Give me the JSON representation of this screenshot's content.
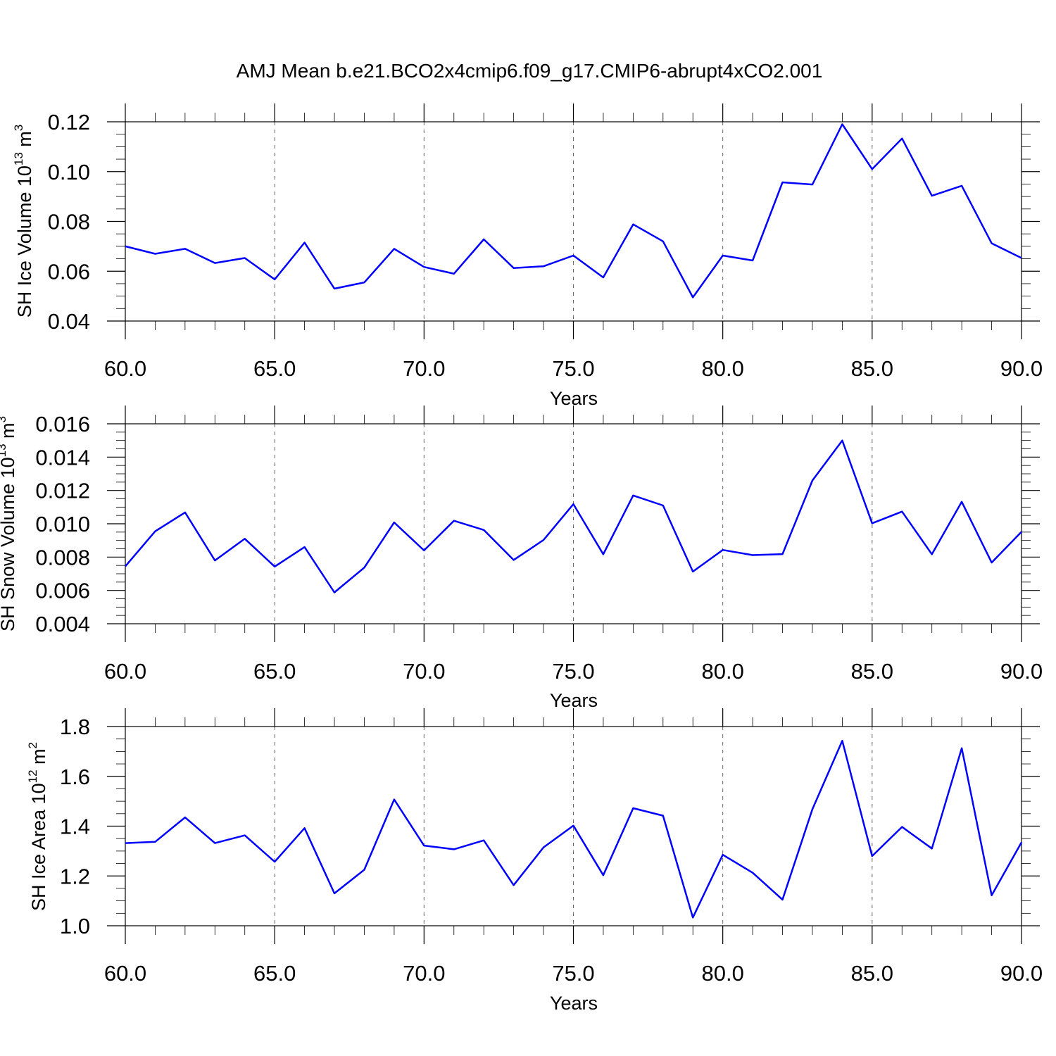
{
  "title": "AMJ Mean b.e21.BCO2x4cmip6.f09_g17.CMIP6-abrupt4xCO2.001",
  "colors": {
    "series": "#0000ff",
    "grid": "#666666",
    "axis": "#000000"
  },
  "chart_data": [
    {
      "type": "line",
      "ylabel": {
        "main": "SH Ice Volume 10",
        "sup1": "13",
        "mid": " m",
        "sup2": "3"
      },
      "xlabel": "Years",
      "xlim": [
        60,
        90
      ],
      "ylim": [
        0.04,
        0.12
      ],
      "xticks": [
        60,
        65,
        70,
        75,
        80,
        85,
        90
      ],
      "xtick_labels": [
        "60.0",
        "65.0",
        "70.0",
        "75.0",
        "80.0",
        "85.0",
        "90.0"
      ],
      "yticks": [
        0.04,
        0.06,
        0.08,
        0.1,
        0.12
      ],
      "ytick_labels": [
        "0.04",
        "0.06",
        "0.08",
        "0.10",
        "0.12"
      ],
      "y_minor_step": 0.005,
      "grid": "vertical dashed",
      "x": [
        60,
        61,
        62,
        63,
        64,
        65,
        66,
        67,
        68,
        69,
        70,
        71,
        72,
        73,
        74,
        75,
        76,
        77,
        78,
        79,
        80,
        81,
        82,
        83,
        84,
        85,
        86,
        87,
        88,
        89,
        90
      ],
      "values": [
        0.07,
        0.067,
        0.069,
        0.0633,
        0.0653,
        0.0567,
        0.0715,
        0.053,
        0.0555,
        0.069,
        0.0617,
        0.059,
        0.0728,
        0.0613,
        0.062,
        0.0663,
        0.0575,
        0.0788,
        0.072,
        0.0495,
        0.0663,
        0.0643,
        0.0957,
        0.0948,
        0.119,
        0.101,
        0.1133,
        0.0903,
        0.0943,
        0.0712,
        0.0653
      ]
    },
    {
      "type": "line",
      "ylabel": {
        "main": "SH Snow Volume 10",
        "sup1": "13",
        "mid": " m",
        "sup2": "3"
      },
      "xlabel": "Years",
      "xlim": [
        60,
        90
      ],
      "ylim": [
        0.004,
        0.016
      ],
      "xticks": [
        60,
        65,
        70,
        75,
        80,
        85,
        90
      ],
      "xtick_labels": [
        "60.0",
        "65.0",
        "70.0",
        "75.0",
        "80.0",
        "85.0",
        "90.0"
      ],
      "yticks": [
        0.004,
        0.006,
        0.008,
        0.01,
        0.012,
        0.014,
        0.016
      ],
      "ytick_labels": [
        "0.004",
        "0.006",
        "0.008",
        "0.010",
        "0.012",
        "0.014",
        "0.016"
      ],
      "y_minor_step": 0.0005,
      "grid": "vertical dashed",
      "x": [
        60,
        61,
        62,
        63,
        64,
        65,
        66,
        67,
        68,
        69,
        70,
        71,
        72,
        73,
        74,
        75,
        76,
        77,
        78,
        79,
        80,
        81,
        82,
        83,
        84,
        85,
        86,
        87,
        88,
        89,
        90
      ],
      "values": [
        0.00745,
        0.00955,
        0.01068,
        0.0078,
        0.0091,
        0.00743,
        0.0086,
        0.00588,
        0.00737,
        0.01008,
        0.0084,
        0.01018,
        0.00963,
        0.00783,
        0.00903,
        0.01118,
        0.00817,
        0.0117,
        0.0111,
        0.00713,
        0.00843,
        0.00812,
        0.00818,
        0.0126,
        0.015,
        0.01003,
        0.01073,
        0.00817,
        0.01132,
        0.00767,
        0.00952
      ]
    },
    {
      "type": "line",
      "ylabel": {
        "main": "SH Ice Area 10",
        "sup1": "12",
        "mid": " m",
        "sup2": "2"
      },
      "xlabel": "Years",
      "xlim": [
        60,
        90
      ],
      "ylim": [
        1.0,
        1.8
      ],
      "xticks": [
        60,
        65,
        70,
        75,
        80,
        85,
        90
      ],
      "xtick_labels": [
        "60.0",
        "65.0",
        "70.0",
        "75.0",
        "80.0",
        "85.0",
        "90.0"
      ],
      "yticks": [
        1.0,
        1.2,
        1.4,
        1.6,
        1.8
      ],
      "ytick_labels": [
        "1.0",
        "1.2",
        "1.4",
        "1.6",
        "1.8"
      ],
      "y_minor_step": 0.05,
      "grid": "vertical dashed",
      "x": [
        60,
        61,
        62,
        63,
        64,
        65,
        66,
        67,
        68,
        69,
        70,
        71,
        72,
        73,
        74,
        75,
        76,
        77,
        78,
        79,
        80,
        81,
        82,
        83,
        84,
        85,
        86,
        87,
        88,
        89,
        90
      ],
      "values": [
        1.332,
        1.337,
        1.435,
        1.332,
        1.363,
        1.257,
        1.392,
        1.13,
        1.225,
        1.507,
        1.322,
        1.307,
        1.343,
        1.163,
        1.315,
        1.402,
        1.203,
        1.472,
        1.442,
        1.033,
        1.285,
        1.213,
        1.105,
        1.468,
        1.743,
        1.28,
        1.397,
        1.31,
        1.713,
        1.122,
        1.335
      ]
    }
  ]
}
